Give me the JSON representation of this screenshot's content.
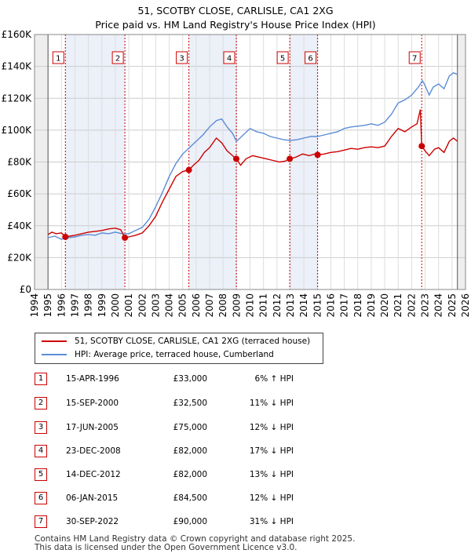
{
  "title_line1": "51, SCOTBY CLOSE, CARLISLE, CA1 2XG",
  "title_line2": "Price paid vs. HM Land Registry's House Price Index (HPI)",
  "colors": {
    "property": "#cc0000",
    "hpi": "#5b8dd6",
    "shade": "#dde6f5"
  },
  "chart_data": {
    "type": "line",
    "title": "Price paid vs. HM Land Registry's House Price Index (HPI)",
    "xlabel": "",
    "ylabel": "",
    "xlim": [
      1994,
      2026
    ],
    "ylim": [
      0,
      160000
    ],
    "y_ticks": [
      {
        "value": 0,
        "label": "£0"
      },
      {
        "value": 20000,
        "label": "£20K"
      },
      {
        "value": 40000,
        "label": "£40K"
      },
      {
        "value": 60000,
        "label": "£60K"
      },
      {
        "value": 80000,
        "label": "£80K"
      },
      {
        "value": 100000,
        "label": "£100K"
      },
      {
        "value": 120000,
        "label": "£120K"
      },
      {
        "value": 140000,
        "label": "£140K"
      },
      {
        "value": 160000,
        "label": "£160K"
      }
    ],
    "x_ticks": [
      1994,
      1995,
      1996,
      1997,
      1998,
      1999,
      2000,
      2001,
      2002,
      2003,
      2004,
      2005,
      2006,
      2007,
      2008,
      2009,
      2010,
      2011,
      2012,
      2013,
      2014,
      2015,
      2016,
      2017,
      2018,
      2019,
      2020,
      2021,
      2022,
      2023,
      2024,
      2025,
      2026
    ],
    "data_start": 1995.0,
    "data_end": 2025.4,
    "series": [
      {
        "name": "51, SCOTBY CLOSE, CARLISLE, CA1 2XG (terraced house)",
        "color": "#cc0000",
        "points": [
          [
            1995.0,
            34500
          ],
          [
            1995.3,
            36000
          ],
          [
            1995.6,
            35000
          ],
          [
            1996.0,
            35500
          ],
          [
            1996.29,
            33000
          ],
          [
            1996.6,
            33500
          ],
          [
            1997.0,
            34000
          ],
          [
            1997.5,
            35000
          ],
          [
            1998.0,
            36000
          ],
          [
            1998.5,
            36500
          ],
          [
            1999.0,
            37000
          ],
          [
            1999.5,
            38000
          ],
          [
            2000.0,
            38500
          ],
          [
            2000.4,
            37500
          ],
          [
            2000.71,
            32500
          ],
          [
            2001.0,
            33000
          ],
          [
            2001.5,
            34000
          ],
          [
            2002.0,
            35500
          ],
          [
            2002.5,
            40000
          ],
          [
            2003.0,
            46000
          ],
          [
            2003.5,
            55000
          ],
          [
            2004.0,
            63000
          ],
          [
            2004.5,
            71000
          ],
          [
            2005.0,
            74000
          ],
          [
            2005.46,
            75000
          ],
          [
            2005.8,
            78000
          ],
          [
            2006.2,
            81000
          ],
          [
            2006.6,
            86000
          ],
          [
            2007.0,
            89000
          ],
          [
            2007.5,
            95000
          ],
          [
            2007.9,
            92000
          ],
          [
            2008.3,
            87000
          ],
          [
            2008.7,
            84000
          ],
          [
            2008.98,
            82000
          ],
          [
            2009.3,
            78000
          ],
          [
            2009.7,
            82000
          ],
          [
            2010.2,
            84000
          ],
          [
            2010.7,
            83000
          ],
          [
            2011.2,
            82000
          ],
          [
            2011.7,
            81000
          ],
          [
            2012.2,
            80000
          ],
          [
            2012.6,
            80500
          ],
          [
            2012.95,
            82000
          ],
          [
            2013.4,
            83000
          ],
          [
            2013.9,
            85000
          ],
          [
            2014.4,
            84000
          ],
          [
            2014.8,
            85000
          ],
          [
            2015.02,
            84500
          ],
          [
            2015.5,
            85000
          ],
          [
            2016.0,
            86000
          ],
          [
            2016.5,
            86500
          ],
          [
            2017.0,
            87500
          ],
          [
            2017.5,
            88500
          ],
          [
            2018.0,
            88000
          ],
          [
            2018.5,
            89000
          ],
          [
            2019.0,
            89500
          ],
          [
            2019.5,
            89000
          ],
          [
            2020.0,
            90000
          ],
          [
            2020.5,
            96000
          ],
          [
            2021.0,
            101000
          ],
          [
            2021.5,
            99000
          ],
          [
            2022.0,
            102000
          ],
          [
            2022.4,
            104000
          ],
          [
            2022.65,
            113000
          ],
          [
            2022.75,
            90000
          ],
          [
            2023.0,
            87000
          ],
          [
            2023.3,
            84000
          ],
          [
            2023.7,
            88000
          ],
          [
            2024.0,
            89000
          ],
          [
            2024.4,
            86000
          ],
          [
            2024.8,
            93000
          ],
          [
            2025.1,
            95000
          ],
          [
            2025.4,
            93000
          ]
        ]
      },
      {
        "name": "HPI: Average price, terraced house, Cumberland",
        "color": "#5b8dd6",
        "points": [
          [
            1995.0,
            32500
          ],
          [
            1995.5,
            33500
          ],
          [
            1996.0,
            31500
          ],
          [
            1996.5,
            32500
          ],
          [
            1997.0,
            33000
          ],
          [
            1997.5,
            34000
          ],
          [
            1998.0,
            34500
          ],
          [
            1998.5,
            34000
          ],
          [
            1999.0,
            35500
          ],
          [
            1999.5,
            35000
          ],
          [
            2000.0,
            36000
          ],
          [
            2000.5,
            35000
          ],
          [
            2001.0,
            35000
          ],
          [
            2001.5,
            37000
          ],
          [
            2002.0,
            39000
          ],
          [
            2002.5,
            44000
          ],
          [
            2003.0,
            52000
          ],
          [
            2003.5,
            61000
          ],
          [
            2004.0,
            71000
          ],
          [
            2004.5,
            79000
          ],
          [
            2005.0,
            85000
          ],
          [
            2005.5,
            89000
          ],
          [
            2006.0,
            93000
          ],
          [
            2006.5,
            97000
          ],
          [
            2007.0,
            102000
          ],
          [
            2007.5,
            106000
          ],
          [
            2007.9,
            107000
          ],
          [
            2008.3,
            102000
          ],
          [
            2008.7,
            98000
          ],
          [
            2009.0,
            93000
          ],
          [
            2009.5,
            97000
          ],
          [
            2010.0,
            101000
          ],
          [
            2010.5,
            99000
          ],
          [
            2011.0,
            98000
          ],
          [
            2011.5,
            96000
          ],
          [
            2012.0,
            95000
          ],
          [
            2012.5,
            94000
          ],
          [
            2013.0,
            93500
          ],
          [
            2013.5,
            94000
          ],
          [
            2014.0,
            95000
          ],
          [
            2014.5,
            96000
          ],
          [
            2015.0,
            96000
          ],
          [
            2015.5,
            97000
          ],
          [
            2016.0,
            98000
          ],
          [
            2016.5,
            99000
          ],
          [
            2017.0,
            101000
          ],
          [
            2017.5,
            102000
          ],
          [
            2018.0,
            102500
          ],
          [
            2018.5,
            103000
          ],
          [
            2019.0,
            104000
          ],
          [
            2019.5,
            103000
          ],
          [
            2020.0,
            105000
          ],
          [
            2020.5,
            110000
          ],
          [
            2021.0,
            117000
          ],
          [
            2021.5,
            119000
          ],
          [
            2022.0,
            122000
          ],
          [
            2022.5,
            127000
          ],
          [
            2022.8,
            131000
          ],
          [
            2023.0,
            128000
          ],
          [
            2023.3,
            122000
          ],
          [
            2023.6,
            127000
          ],
          [
            2024.0,
            129000
          ],
          [
            2024.4,
            126000
          ],
          [
            2024.8,
            134000
          ],
          [
            2025.1,
            136000
          ],
          [
            2025.4,
            135000
          ]
        ]
      }
    ],
    "sales": [
      {
        "num": "1",
        "x": 1996.29,
        "price": 33000
      },
      {
        "num": "2",
        "x": 2000.71,
        "price": 32500
      },
      {
        "num": "3",
        "x": 2005.46,
        "price": 75000
      },
      {
        "num": "4",
        "x": 2008.98,
        "price": 82000
      },
      {
        "num": "5",
        "x": 2012.95,
        "price": 82000
      },
      {
        "num": "6",
        "x": 2015.02,
        "price": 84500
      },
      {
        "num": "7",
        "x": 2022.75,
        "price": 90000
      }
    ]
  },
  "legend": {
    "property_label": "51, SCOTBY CLOSE, CARLISLE, CA1 2XG (terraced house)",
    "hpi_label": "HPI: Average price, terraced house, Cumberland"
  },
  "sales_table": [
    {
      "num": "1",
      "date": "15-APR-1996",
      "price": "£33,000",
      "hpi": "6% ↑ HPI"
    },
    {
      "num": "2",
      "date": "15-SEP-2000",
      "price": "£32,500",
      "hpi": "11% ↓ HPI"
    },
    {
      "num": "3",
      "date": "17-JUN-2005",
      "price": "£75,000",
      "hpi": "12% ↓ HPI"
    },
    {
      "num": "4",
      "date": "23-DEC-2008",
      "price": "£82,000",
      "hpi": "17% ↓ HPI"
    },
    {
      "num": "5",
      "date": "14-DEC-2012",
      "price": "£82,000",
      "hpi": "13% ↓ HPI"
    },
    {
      "num": "6",
      "date": "06-JAN-2015",
      "price": "£84,500",
      "hpi": "12% ↓ HPI"
    },
    {
      "num": "7",
      "date": "30-SEP-2022",
      "price": "£90,000",
      "hpi": "31% ↓ HPI"
    }
  ],
  "footer": {
    "line1": "Contains HM Land Registry data © Crown copyright and database right 2025.",
    "line2": "This data is licensed under the Open Government Licence v3.0."
  }
}
